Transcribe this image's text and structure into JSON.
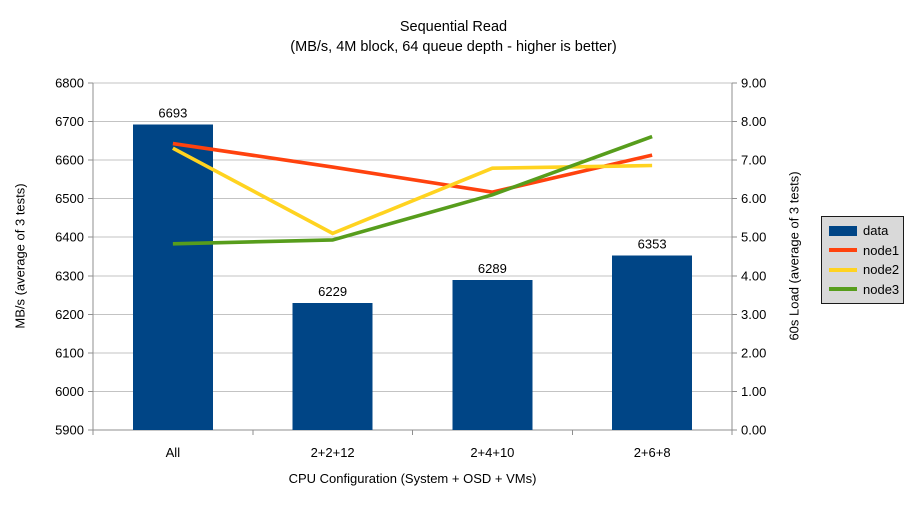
{
  "chart_data": {
    "type": "combo_bar_line",
    "title": "Sequential Read",
    "subtitle": "(MB/s, 4M block, 64 queue depth - higher is better)",
    "xlabel": "CPU Configuration (System + OSD + VMs)",
    "ylabel_left": "MB/s (average of 3 tests)",
    "ylabel_right": "60s Load (average of 3 tests)",
    "categories": [
      "All",
      "2+2+12",
      "2+4+10",
      "2+6+8"
    ],
    "bar_series": {
      "name": "data",
      "color": "#004586",
      "axis": "left",
      "values": [
        6693,
        6229,
        6289,
        6353
      ],
      "labels": [
        "6693",
        "6229",
        "6289",
        "6353"
      ]
    },
    "line_series": [
      {
        "name": "node1",
        "color": "#ff420e",
        "axis": "right",
        "values": [
          7.43,
          6.82,
          6.17,
          7.13
        ]
      },
      {
        "name": "node2",
        "color": "#ffd320",
        "axis": "right",
        "values": [
          7.31,
          5.1,
          6.79,
          6.86
        ]
      },
      {
        "name": "node3",
        "color": "#579d1c",
        "axis": "right",
        "values": [
          4.83,
          4.93,
          6.1,
          7.61
        ]
      }
    ],
    "axis_left": {
      "min": 5900,
      "max": 6800,
      "step": 100,
      "tick_labels": [
        "5900",
        "6000",
        "6100",
        "6200",
        "6300",
        "6400",
        "6500",
        "6600",
        "6700",
        "6800"
      ]
    },
    "axis_right": {
      "min": 0,
      "max": 9,
      "step": 1,
      "tick_labels": [
        "0.00",
        "1.00",
        "2.00",
        "3.00",
        "4.00",
        "5.00",
        "6.00",
        "7.00",
        "8.00",
        "9.00"
      ]
    },
    "grid": "horizontal",
    "legend": {
      "position": "right",
      "background": "#d9d9d9",
      "border": "#1a1a1a",
      "entries": [
        {
          "label": "data",
          "color": "#004586",
          "type": "bar"
        },
        {
          "label": "node1",
          "color": "#ff420e",
          "type": "line"
        },
        {
          "label": "node2",
          "color": "#ffd320",
          "type": "line"
        },
        {
          "label": "node3",
          "color": "#579d1c",
          "type": "line"
        }
      ]
    },
    "colors": {
      "gridline": "#c3c3c3",
      "axis": "#8f8f8f",
      "text": "#000000"
    }
  }
}
